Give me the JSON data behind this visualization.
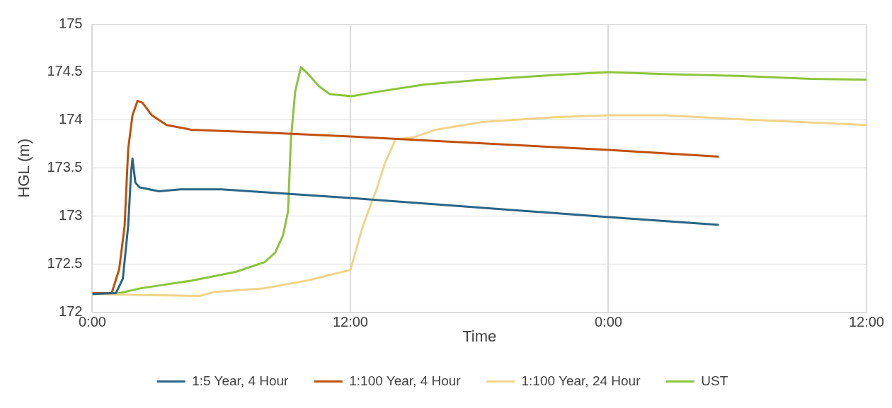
{
  "chart_data": {
    "type": "line",
    "xlabel": "Time",
    "ylabel": "HGL (m)",
    "xlim": [
      "2000-01-01T00:00",
      "2000-01-02T12:00"
    ],
    "xticks": [
      {
        "value": "2000-01-01T00:00",
        "label": "0:00"
      },
      {
        "value": "2000-01-01T12:00",
        "label": "12:00"
      },
      {
        "value": "2000-01-02T00:00",
        "label": "0:00"
      },
      {
        "value": "2000-01-02T12:00",
        "label": "12:00"
      }
    ],
    "ylim": [
      172,
      175
    ],
    "yticks": [
      172,
      172.5,
      173,
      173.5,
      174,
      174.5,
      175
    ],
    "grid": true,
    "legend": "bottom",
    "marker": "none",
    "line_style": "solid",
    "series": [
      {
        "name": "1:5 Year, 4 Hour",
        "color": "#2a6584",
        "x": [
          "2000-01-01T00:00",
          "2000-01-01T01:06",
          "2000-01-01T01:25",
          "2000-01-01T01:40",
          "2000-01-01T01:48",
          "2000-01-01T01:52",
          "2000-01-01T02:00",
          "2000-01-01T02:12",
          "2000-01-01T03:06",
          "2000-01-01T04:06",
          "2000-01-01T06:00",
          "2000-01-01T12:00",
          "2000-01-02T00:00",
          "2000-01-02T05:08"
        ],
        "values": [
          172.19,
          172.2,
          172.35,
          172.9,
          173.45,
          173.6,
          173.35,
          173.3,
          173.26,
          173.28,
          173.28,
          173.19,
          172.99,
          172.91
        ]
      },
      {
        "name": "1:100 Year, 4 Hour",
        "color": "#c0500a",
        "x": [
          "2000-01-01T00:00",
          "2000-01-01T00:54",
          "2000-01-01T01:15",
          "2000-01-01T01:30",
          "2000-01-01T01:40",
          "2000-01-01T01:52",
          "2000-01-01T02:06",
          "2000-01-01T02:20",
          "2000-01-01T02:46",
          "2000-01-01T03:27",
          "2000-01-01T04:36",
          "2000-01-01T08:00",
          "2000-01-01T12:00",
          "2000-01-02T00:00",
          "2000-01-02T05:08"
        ],
        "values": [
          172.2,
          172.2,
          172.45,
          172.9,
          173.7,
          174.05,
          174.2,
          174.18,
          174.05,
          173.95,
          173.9,
          173.87,
          173.83,
          173.69,
          173.62
        ]
      },
      {
        "name": "1:100 Year, 24 Hour",
        "color": "#f0d48a",
        "x": [
          "2000-01-01T00:00",
          "2000-01-01T02:16",
          "2000-01-01T05:00",
          "2000-01-01T05:39",
          "2000-01-01T08:00",
          "2000-01-01T10:00",
          "2000-01-01T12:00",
          "2000-01-01T12:35",
          "2000-01-01T13:15",
          "2000-01-01T13:36",
          "2000-01-01T14:06",
          "2000-01-01T14:56",
          "2000-01-01T15:58",
          "2000-01-01T18:09",
          "2000-01-01T21:30",
          "2000-01-02T00:00",
          "2000-01-02T02:36",
          "2000-01-02T06:00",
          "2000-01-02T12:00"
        ],
        "values": [
          172.19,
          172.18,
          172.17,
          172.21,
          172.25,
          172.33,
          172.44,
          172.9,
          173.3,
          173.55,
          173.8,
          173.82,
          173.9,
          173.98,
          174.03,
          174.05,
          174.05,
          174.01,
          173.95
        ]
      },
      {
        "name": "UST",
        "color": "#8cc43c",
        "x": [
          "2000-01-01T00:00",
          "2000-01-01T01:15",
          "2000-01-01T02:16",
          "2000-01-01T04:38",
          "2000-01-01T06:40",
          "2000-01-01T08:00",
          "2000-01-01T08:30",
          "2000-01-01T08:52",
          "2000-01-01T09:06",
          "2000-01-01T09:14",
          "2000-01-01T09:26",
          "2000-01-01T09:42",
          "2000-01-01T10:02",
          "2000-01-01T10:33",
          "2000-01-01T11:03",
          "2000-01-01T12:04",
          "2000-01-01T13:24",
          "2000-01-01T15:27",
          "2000-01-01T18:09",
          "2000-01-01T21:30",
          "2000-01-02T00:00",
          "2000-01-02T02:36",
          "2000-01-02T06:00",
          "2000-01-02T09:24",
          "2000-01-02T12:00"
        ],
        "values": [
          172.19,
          172.2,
          172.25,
          172.33,
          172.42,
          172.52,
          172.62,
          172.8,
          173.05,
          173.8,
          174.3,
          174.55,
          174.48,
          174.35,
          174.27,
          174.25,
          174.3,
          174.37,
          174.42,
          174.47,
          174.5,
          174.48,
          174.46,
          174.43,
          174.42
        ]
      }
    ]
  }
}
